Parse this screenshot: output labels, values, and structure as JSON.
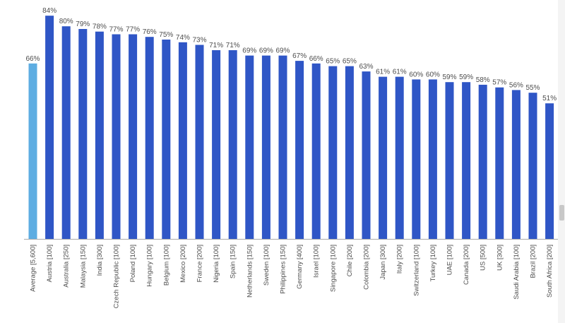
{
  "chart_data": {
    "type": "bar",
    "categories": [
      "Average [5,600]",
      "Austria [100]",
      "Australia [250]",
      "Malaysia [150]",
      "India [300]",
      "Czech Republic [100]",
      "Poland [100]",
      "Hungary [100]",
      "Belgium [100]",
      "Mexico [200]",
      "France [200]",
      "Nigeria [100]",
      "Spain [150]",
      "Netherlands [150]",
      "Sweden [100]",
      "Philippines [150]",
      "Germany [400]",
      "Israel [100]",
      "Singapore [100]",
      "Chile [200]",
      "Colombia [200]",
      "Japan [300]",
      "Italy [200]",
      "Switzerland [100]",
      "Turkey [100]",
      "UAE [100]",
      "Canada [200]",
      "US [500]",
      "UK [300]",
      "Saudi Arabia [100]",
      "Brazil [200]",
      "South Africa [200]"
    ],
    "values": [
      66,
      84,
      80,
      79,
      78,
      77,
      77,
      76,
      75,
      74,
      73,
      71,
      71,
      69,
      69,
      69,
      67,
      66,
      65,
      65,
      63,
      61,
      61,
      60,
      60,
      59,
      59,
      58,
      57,
      56,
      55,
      51
    ],
    "value_labels": [
      "66%",
      "84%",
      "80%",
      "79%",
      "78%",
      "77%",
      "77%",
      "76%",
      "75%",
      "74%",
      "73%",
      "71%",
      "71%",
      "69%",
      "69%",
      "69%",
      "67%",
      "66%",
      "65%",
      "65%",
      "63%",
      "61%",
      "61%",
      "60%",
      "60%",
      "59%",
      "59%",
      "58%",
      "57%",
      "56%",
      "55%",
      "51%"
    ],
    "ylim": [
      0,
      100
    ],
    "grid": false,
    "legend": "none",
    "colors": {
      "highlight": "#5dade2",
      "bars": "#2f56c6",
      "baseline": "#aaaaaa",
      "labels": "#4d4d4d"
    },
    "highlight_index": 0
  }
}
